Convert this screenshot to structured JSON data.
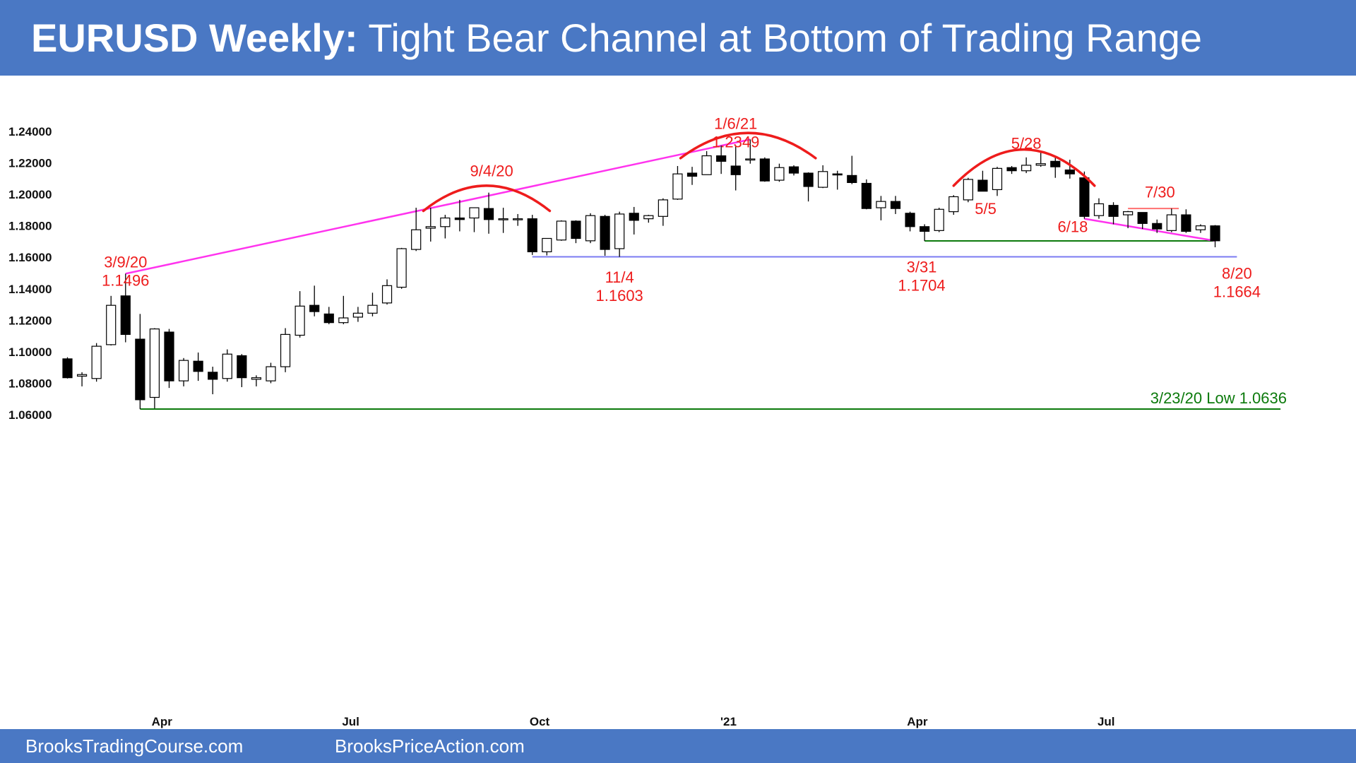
{
  "title": {
    "bold": "EURUSD Weekly:",
    "rest": " Tight Bear Channel at Bottom of Trading Range"
  },
  "footer": {
    "left": "BrooksTradingCourse.com",
    "right": "BrooksPriceAction.com"
  },
  "colors": {
    "banner": "#4a78c4",
    "annotation": "#ee1c1c",
    "trendline": "#ff33ee",
    "support_green": "#0c7a0c",
    "support_blue": "#7b7bf2"
  },
  "chart_data": {
    "type": "candlestick",
    "ylim": [
      1.05,
      1.245
    ],
    "y_ticks": [
      "1.24000",
      "1.22000",
      "1.20000",
      "1.18000",
      "1.16000",
      "1.14000",
      "1.12000",
      "1.10000",
      "1.08000",
      "1.06000"
    ],
    "y_tick_values": [
      1.24,
      1.22,
      1.2,
      1.18,
      1.16,
      1.14,
      1.12,
      1.1,
      1.08,
      1.06
    ],
    "x_labels": [
      {
        "label": "Apr",
        "bar": 6.5
      },
      {
        "label": "Jul",
        "bar": 19.5
      },
      {
        "label": "Oct",
        "bar": 32.5
      },
      {
        "label": "'21",
        "bar": 45.5
      },
      {
        "label": "Apr",
        "bar": 58.5
      },
      {
        "label": "Jul",
        "bar": 71.5
      }
    ],
    "candles": [
      [
        1.0955,
        1.0965,
        1.083,
        1.0835
      ],
      [
        1.0845,
        1.087,
        1.078,
        1.0855
      ],
      [
        1.083,
        1.1055,
        1.081,
        1.1035
      ],
      [
        1.1045,
        1.1355,
        1.104,
        1.1295
      ],
      [
        1.1355,
        1.1496,
        1.106,
        1.111
      ],
      [
        1.108,
        1.124,
        1.0636,
        1.0695
      ],
      [
        1.071,
        1.115,
        1.064,
        1.1145
      ],
      [
        1.1125,
        1.1145,
        1.077,
        1.0815
      ],
      [
        1.0815,
        1.096,
        1.078,
        1.0945
      ],
      [
        1.094,
        1.0995,
        1.0815,
        1.0875
      ],
      [
        1.087,
        1.0905,
        1.073,
        1.0825
      ],
      [
        1.083,
        1.1015,
        1.081,
        1.0985
      ],
      [
        1.0975,
        1.0985,
        1.0775,
        1.0835
      ],
      [
        1.0825,
        1.085,
        1.078,
        1.0835
      ],
      [
        1.0815,
        1.093,
        1.08,
        1.0905
      ],
      [
        1.0905,
        1.115,
        1.087,
        1.111
      ],
      [
        1.1105,
        1.1385,
        1.109,
        1.129
      ],
      [
        1.1295,
        1.142,
        1.1225,
        1.1255
      ],
      [
        1.124,
        1.1285,
        1.1175,
        1.1185
      ],
      [
        1.1185,
        1.1355,
        1.1175,
        1.1215
      ],
      [
        1.122,
        1.1285,
        1.119,
        1.1245
      ],
      [
        1.1245,
        1.1375,
        1.1225,
        1.1295
      ],
      [
        1.131,
        1.146,
        1.13,
        1.142
      ],
      [
        1.141,
        1.166,
        1.14,
        1.1655
      ],
      [
        1.165,
        1.1915,
        1.164,
        1.1775
      ],
      [
        1.1785,
        1.1915,
        1.17,
        1.1795
      ],
      [
        1.1795,
        1.187,
        1.172,
        1.185
      ],
      [
        1.185,
        1.1965,
        1.1765,
        1.184
      ],
      [
        1.185,
        1.1915,
        1.176,
        1.1915
      ],
      [
        1.191,
        1.2011,
        1.175,
        1.184
      ],
      [
        1.1845,
        1.1915,
        1.1755,
        1.1845
      ],
      [
        1.1845,
        1.1875,
        1.18,
        1.1845
      ],
      [
        1.1845,
        1.187,
        1.1615,
        1.1635
      ],
      [
        1.1635,
        1.172,
        1.1612,
        1.172
      ],
      [
        1.171,
        1.1835,
        1.1705,
        1.183
      ],
      [
        1.183,
        1.1835,
        1.169,
        1.172
      ],
      [
        1.1705,
        1.188,
        1.169,
        1.1865
      ],
      [
        1.186,
        1.187,
        1.161,
        1.165
      ],
      [
        1.1655,
        1.189,
        1.1603,
        1.1875
      ],
      [
        1.188,
        1.192,
        1.1745,
        1.1835
      ],
      [
        1.1845,
        1.187,
        1.182,
        1.1865
      ],
      [
        1.186,
        1.1975,
        1.18,
        1.1965
      ],
      [
        1.197,
        1.218,
        1.1965,
        1.213
      ],
      [
        1.2135,
        1.2175,
        1.206,
        1.2115
      ],
      [
        1.2125,
        1.2275,
        1.2125,
        1.2245
      ],
      [
        1.2245,
        1.231,
        1.213,
        1.221
      ],
      [
        1.218,
        1.231,
        1.2025,
        1.2125
      ],
      [
        1.2225,
        1.2349,
        1.2195,
        1.2225
      ],
      [
        1.2225,
        1.2235,
        1.208,
        1.2085
      ],
      [
        1.209,
        1.2195,
        1.208,
        1.217
      ],
      [
        1.2175,
        1.2185,
        1.212,
        1.2135
      ],
      [
        1.2135,
        1.214,
        1.1955,
        1.205
      ],
      [
        1.2045,
        1.2185,
        1.204,
        1.2145
      ],
      [
        1.213,
        1.215,
        1.203,
        1.2125
      ],
      [
        1.212,
        1.2245,
        1.2065,
        1.2075
      ],
      [
        1.207,
        1.2095,
        1.1905,
        1.191
      ],
      [
        1.1915,
        1.199,
        1.1835,
        1.1955
      ],
      [
        1.1955,
        1.199,
        1.1875,
        1.191
      ],
      [
        1.188,
        1.189,
        1.1765,
        1.1795
      ],
      [
        1.1795,
        1.181,
        1.1704,
        1.1765
      ],
      [
        1.177,
        1.1915,
        1.176,
        1.1905
      ],
      [
        1.189,
        1.1995,
        1.187,
        1.1985
      ],
      [
        1.1965,
        1.2105,
        1.195,
        1.2095
      ],
      [
        1.209,
        1.215,
        1.202,
        1.202
      ],
      [
        1.203,
        1.2175,
        1.199,
        1.2165
      ],
      [
        1.217,
        1.218,
        1.213,
        1.215
      ],
      [
        1.215,
        1.2235,
        1.2135,
        1.2185
      ],
      [
        1.2185,
        1.2265,
        1.2175,
        1.2195
      ],
      [
        1.221,
        1.2245,
        1.2105,
        1.2175
      ],
      [
        1.2155,
        1.222,
        1.21,
        1.213
      ],
      [
        1.2105,
        1.2145,
        1.1845,
        1.186
      ],
      [
        1.1865,
        1.1975,
        1.1845,
        1.194
      ],
      [
        1.193,
        1.195,
        1.181,
        1.186
      ],
      [
        1.187,
        1.1895,
        1.1785,
        1.189
      ],
      [
        1.1885,
        1.1885,
        1.178,
        1.1815
      ],
      [
        1.1815,
        1.184,
        1.1755,
        1.178
      ],
      [
        1.177,
        1.191,
        1.176,
        1.187
      ],
      [
        1.187,
        1.1905,
        1.1755,
        1.1765
      ],
      [
        1.1775,
        1.181,
        1.1755,
        1.18
      ],
      [
        1.18,
        1.1805,
        1.1664,
        1.1705
      ]
    ],
    "horizontal_lines": [
      {
        "y": 1.0636,
        "from_bar": 5,
        "to_bar": 83.5,
        "color": "#0c7a0c"
      },
      {
        "y": 1.1603,
        "from_bar": 32,
        "to_bar": 80.5,
        "color": "#7b7bf2"
      },
      {
        "y": 1.1704,
        "from_bar": 59,
        "to_bar": 79,
        "color": "#0c7a0c"
      },
      {
        "y": 1.191,
        "from_bar": 73,
        "to_bar": 76.5,
        "color": "#ff7070"
      }
    ],
    "trend_lines": [
      {
        "x1": 4,
        "y1": 1.1496,
        "x2": 47,
        "y2": 1.2349,
        "color": "#ff33ee"
      },
      {
        "x1": 70,
        "y1": 1.1845,
        "x2": 79,
        "y2": 1.1705,
        "color": "#ff33ee"
      }
    ],
    "arcs": [
      {
        "from_bar": 24.5,
        "to_bar": 33.2,
        "base_y": 1.1895,
        "top_y": 1.2055
      },
      {
        "from_bar": 42.2,
        "to_bar": 51.5,
        "base_y": 1.223,
        "top_y": 1.239
      },
      {
        "from_bar": 61,
        "to_bar": 70.7,
        "base_y": 1.2055,
        "top_y": 1.2285
      }
    ],
    "annotations": [
      {
        "lines": [
          "3/9/20",
          "1.1496"
        ],
        "bar": 4,
        "y": 1.1535
      },
      {
        "lines": [
          "9/4/20"
        ],
        "bar": 29.2,
        "y": 1.2115
      },
      {
        "lines": [
          "1/6/21",
          "1.2349"
        ],
        "bar": 46,
        "y": 1.2415
      },
      {
        "lines": [
          "11/4",
          "1.1603"
        ],
        "bar": 38,
        "y": 1.144
      },
      {
        "lines": [
          "3/31",
          "1.1704"
        ],
        "bar": 58.8,
        "y": 1.1505
      },
      {
        "lines": [
          "5/28"
        ],
        "bar": 66,
        "y": 1.229
      },
      {
        "lines": [
          "5/5"
        ],
        "bar": 63.2,
        "y": 1.1875
      },
      {
        "lines": [
          "6/18"
        ],
        "bar": 69.2,
        "y": 1.176
      },
      {
        "lines": [
          "7/30"
        ],
        "bar": 75.2,
        "y": 1.198
      },
      {
        "lines": [
          "8/20",
          "1.1664"
        ],
        "bar": 80.5,
        "y": 1.1465
      }
    ],
    "low_label": "3/23/20 Low 1.0636"
  }
}
